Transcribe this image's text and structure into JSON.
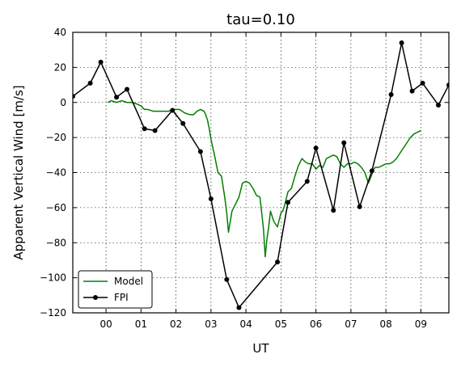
{
  "chart_data": {
    "type": "line",
    "title": "tau=0.10",
    "xlabel": "UT",
    "ylabel": "Apparent Vertical Wind [m/s]",
    "xlim": [
      -0.95,
      9.8
    ],
    "ylim": [
      -120,
      40
    ],
    "x_ticks": [
      0,
      1,
      2,
      3,
      4,
      5,
      6,
      7,
      8,
      9
    ],
    "x_tick_labels": [
      "00",
      "01",
      "02",
      "03",
      "04",
      "05",
      "06",
      "07",
      "08",
      "09"
    ],
    "y_ticks": [
      -120,
      -100,
      -80,
      -60,
      -40,
      -20,
      0,
      20,
      40
    ],
    "y_tick_labels": [
      "−120",
      "−100",
      "−80",
      "−60",
      "−40",
      "−20",
      "0",
      "20",
      "40"
    ],
    "grid": true,
    "legend_position": "bottom-left",
    "series": [
      {
        "name": "Model",
        "color": "#008000",
        "marker": false,
        "x": [
          0.05,
          0.15,
          0.3,
          0.45,
          0.6,
          0.75,
          0.9,
          1.0,
          1.1,
          1.2,
          1.35,
          1.5,
          1.65,
          1.8,
          1.9,
          2.0,
          2.1,
          2.25,
          2.4,
          2.5,
          2.6,
          2.7,
          2.8,
          2.85,
          2.9,
          2.95,
          3.0,
          3.1,
          3.2,
          3.3,
          3.4,
          3.45,
          3.5,
          3.6,
          3.7,
          3.8,
          3.9,
          4.0,
          4.1,
          4.2,
          4.3,
          4.4,
          4.5,
          4.55,
          4.6,
          4.65,
          4.7,
          4.8,
          4.9,
          5.0,
          5.05,
          5.1,
          5.2,
          5.3,
          5.4,
          5.5,
          5.6,
          5.7,
          5.8,
          5.9,
          6.0,
          6.1,
          6.2,
          6.3,
          6.4,
          6.5,
          6.6,
          6.7,
          6.8,
          6.9,
          7.0,
          7.1,
          7.2,
          7.3,
          7.4,
          7.5,
          7.6,
          7.65,
          7.7,
          7.8,
          7.9,
          8.0,
          8.1,
          8.2,
          8.3,
          8.4,
          8.5,
          8.6,
          8.7,
          8.8,
          8.9,
          9.0
        ],
        "y": [
          0,
          1,
          0,
          1,
          0,
          0,
          -1,
          -2,
          -4,
          -4,
          -5,
          -5,
          -5,
          -5,
          -4,
          -4,
          -4,
          -6,
          -7,
          -7,
          -5,
          -4,
          -5,
          -7,
          -10,
          -15,
          -21,
          -30,
          -40,
          -42,
          -55,
          -63,
          -74,
          -62,
          -58,
          -54,
          -46,
          -45,
          -46,
          -49,
          -53,
          -54,
          -72,
          -88,
          -78,
          -71,
          -62,
          -68,
          -71,
          -63,
          -62,
          -59,
          -51,
          -49,
          -42,
          -36,
          -32,
          -34,
          -35,
          -35,
          -38,
          -36,
          -37,
          -32,
          -31,
          -30,
          -31,
          -35,
          -37,
          -35,
          -35,
          -34,
          -35,
          -37,
          -40,
          -46,
          -41,
          -38,
          -37,
          -37,
          -36,
          -35,
          -35,
          -34,
          -32,
          -29,
          -26,
          -23,
          -20,
          -18,
          -17,
          -16
        ]
      },
      {
        "name": "FPI",
        "color": "#000000",
        "marker": true,
        "x": [
          -0.95,
          -0.45,
          -0.15,
          0.3,
          0.6,
          1.1,
          1.4,
          1.9,
          2.2,
          2.7,
          3.0,
          3.45,
          3.8,
          4.9,
          5.2,
          5.75,
          6.0,
          6.5,
          6.8,
          7.25,
          7.6,
          8.15,
          8.45,
          8.75,
          9.05,
          9.5,
          9.8
        ],
        "y": [
          3.5,
          11,
          23,
          3,
          7.5,
          -15,
          -16,
          -4.5,
          -12,
          -28,
          -55,
          -101,
          -117,
          -91,
          -57,
          -45,
          -26,
          -61.5,
          -23,
          -59.5,
          -39,
          4.5,
          34,
          6.5,
          11,
          -1.5,
          10
        ]
      }
    ]
  }
}
